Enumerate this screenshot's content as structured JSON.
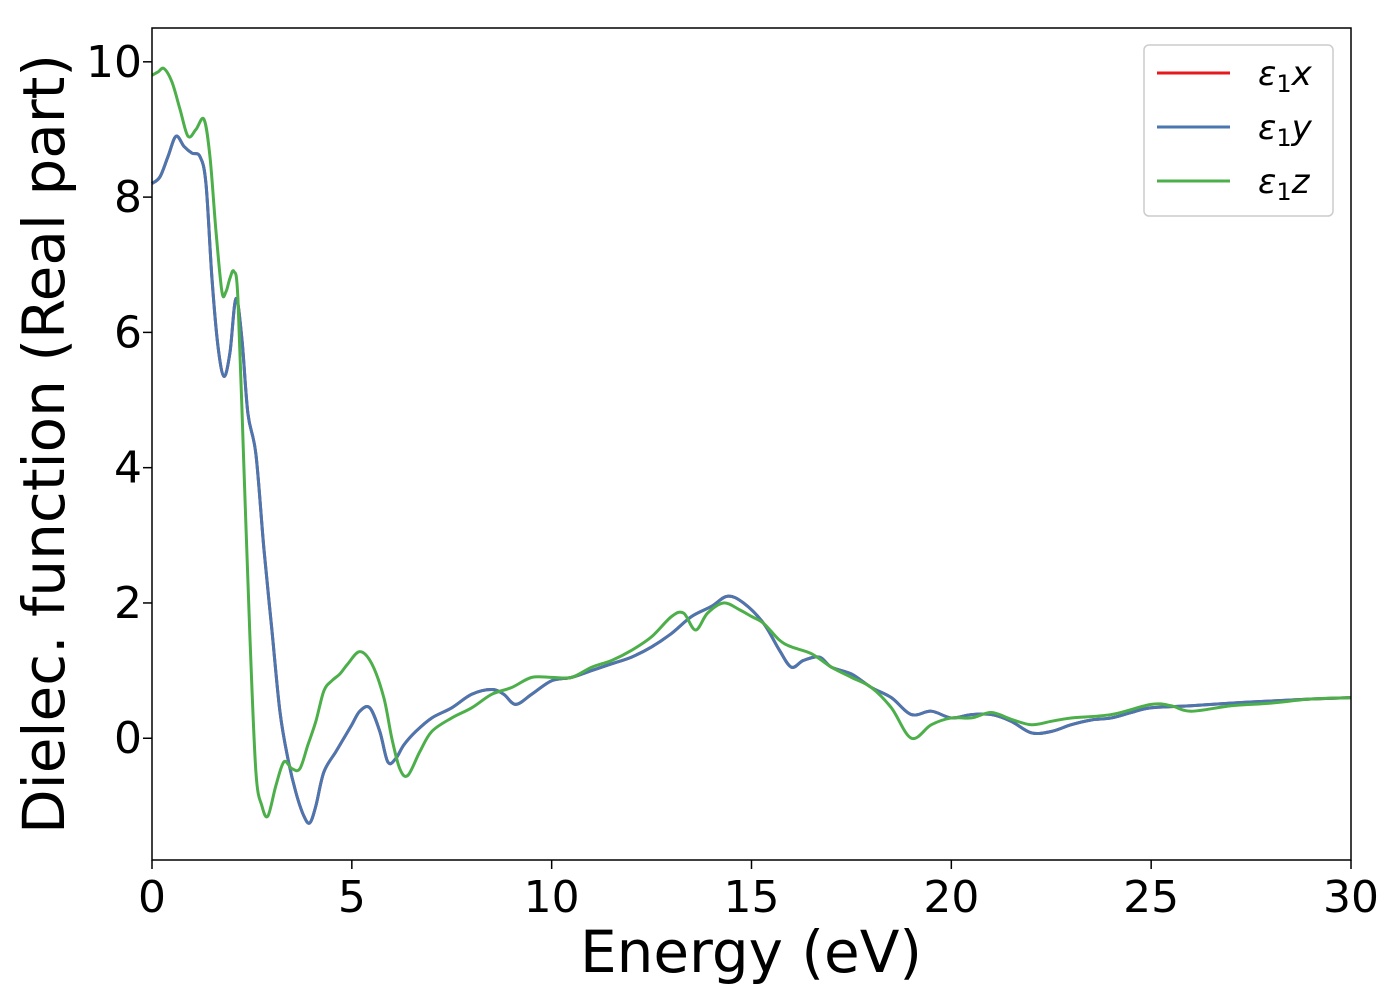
{
  "chart_data": {
    "type": "line",
    "xlabel": "Energy (eV)",
    "ylabel": "Dielec. function (Real part)",
    "xlim": [
      0,
      30
    ],
    "ylim": [
      -1.8,
      10.5
    ],
    "xticks": [
      0,
      5,
      10,
      15,
      20,
      25,
      30
    ],
    "yticks": [
      0,
      2,
      4,
      6,
      8,
      10
    ],
    "grid": false,
    "legend_position": "top-right",
    "series": [
      {
        "name": "ε₁x",
        "legend_base": "ε",
        "legend_sub": "1",
        "legend_var": "x",
        "color": "#e41a1c",
        "x": [
          0,
          0.2,
          0.4,
          0.6,
          0.8,
          1.0,
          1.2,
          1.35,
          1.5,
          1.65,
          1.8,
          1.95,
          2.1,
          2.25,
          2.4,
          2.6,
          2.8,
          3.0,
          3.2,
          3.4,
          3.6,
          3.8,
          3.95,
          4.1,
          4.3,
          4.6,
          4.8,
          5.0,
          5.2,
          5.45,
          5.7,
          5.9,
          6.1,
          6.3,
          6.6,
          7.0,
          7.5,
          8.0,
          8.5,
          8.8,
          9.1,
          9.5,
          10.0,
          10.5,
          11.0,
          11.5,
          12.0,
          12.5,
          13.0,
          13.5,
          14.0,
          14.4,
          14.8,
          15.3,
          15.7,
          16.0,
          16.3,
          16.7,
          17.0,
          17.5,
          18.0,
          18.5,
          19.0,
          19.5,
          20.0,
          20.5,
          21.0,
          21.5,
          22.0,
          22.5,
          23.0,
          23.5,
          24.0,
          24.5,
          25.0,
          26.0,
          27.0,
          28.0,
          29.0,
          30.0
        ],
        "values": [
          8.2,
          8.3,
          8.6,
          8.9,
          8.75,
          8.65,
          8.6,
          8.2,
          6.8,
          5.8,
          5.35,
          5.7,
          6.5,
          5.9,
          4.8,
          4.2,
          2.8,
          1.6,
          0.4,
          -0.3,
          -0.8,
          -1.15,
          -1.25,
          -1.0,
          -0.5,
          -0.2,
          0.0,
          0.2,
          0.4,
          0.45,
          0.1,
          -0.35,
          -0.3,
          -0.1,
          0.1,
          0.3,
          0.45,
          0.65,
          0.72,
          0.65,
          0.5,
          0.65,
          0.85,
          0.9,
          1.0,
          1.1,
          1.2,
          1.35,
          1.55,
          1.8,
          1.95,
          2.1,
          2.0,
          1.7,
          1.3,
          1.05,
          1.15,
          1.2,
          1.05,
          0.95,
          0.75,
          0.6,
          0.35,
          0.4,
          0.3,
          0.35,
          0.35,
          0.25,
          0.08,
          0.1,
          0.2,
          0.27,
          0.3,
          0.38,
          0.45,
          0.48,
          0.52,
          0.55,
          0.58,
          0.6
        ]
      },
      {
        "name": "ε₁y",
        "legend_base": "ε",
        "legend_sub": "1",
        "legend_var": "y",
        "color": "#4a77b0",
        "x": [
          0,
          0.2,
          0.4,
          0.6,
          0.8,
          1.0,
          1.2,
          1.35,
          1.5,
          1.65,
          1.8,
          1.95,
          2.1,
          2.25,
          2.4,
          2.6,
          2.8,
          3.0,
          3.2,
          3.4,
          3.6,
          3.8,
          3.95,
          4.1,
          4.3,
          4.6,
          4.8,
          5.0,
          5.2,
          5.45,
          5.7,
          5.9,
          6.1,
          6.3,
          6.6,
          7.0,
          7.5,
          8.0,
          8.5,
          8.8,
          9.1,
          9.5,
          10.0,
          10.5,
          11.0,
          11.5,
          12.0,
          12.5,
          13.0,
          13.5,
          14.0,
          14.4,
          14.8,
          15.3,
          15.7,
          16.0,
          16.3,
          16.7,
          17.0,
          17.5,
          18.0,
          18.5,
          19.0,
          19.5,
          20.0,
          20.5,
          21.0,
          21.5,
          22.0,
          22.5,
          23.0,
          23.5,
          24.0,
          24.5,
          25.0,
          26.0,
          27.0,
          28.0,
          29.0,
          30.0
        ],
        "values": [
          8.2,
          8.3,
          8.6,
          8.9,
          8.75,
          8.65,
          8.6,
          8.2,
          6.8,
          5.8,
          5.35,
          5.7,
          6.5,
          5.9,
          4.8,
          4.2,
          2.8,
          1.6,
          0.4,
          -0.3,
          -0.8,
          -1.15,
          -1.25,
          -1.0,
          -0.5,
          -0.2,
          0.0,
          0.2,
          0.4,
          0.45,
          0.1,
          -0.35,
          -0.3,
          -0.1,
          0.1,
          0.3,
          0.45,
          0.65,
          0.72,
          0.65,
          0.5,
          0.65,
          0.85,
          0.9,
          1.0,
          1.1,
          1.2,
          1.35,
          1.55,
          1.8,
          1.95,
          2.1,
          2.0,
          1.7,
          1.3,
          1.05,
          1.15,
          1.2,
          1.05,
          0.95,
          0.75,
          0.6,
          0.35,
          0.4,
          0.3,
          0.35,
          0.35,
          0.25,
          0.08,
          0.1,
          0.2,
          0.27,
          0.3,
          0.38,
          0.45,
          0.48,
          0.52,
          0.55,
          0.58,
          0.6
        ]
      },
      {
        "name": "ε₁z",
        "legend_base": "ε",
        "legend_sub": "1",
        "legend_var": "z",
        "color": "#4daf4a",
        "x": [
          0,
          0.15,
          0.3,
          0.5,
          0.7,
          0.9,
          1.1,
          1.3,
          1.45,
          1.6,
          1.75,
          1.85,
          1.95,
          2.05,
          2.15,
          2.3,
          2.45,
          2.6,
          2.75,
          2.9,
          3.1,
          3.3,
          3.5,
          3.7,
          3.9,
          4.1,
          4.3,
          4.5,
          4.7,
          4.9,
          5.2,
          5.5,
          5.8,
          6.0,
          6.2,
          6.4,
          6.7,
          7.0,
          7.5,
          8.0,
          8.5,
          9.0,
          9.5,
          10.0,
          10.5,
          11.0,
          11.5,
          12.0,
          12.5,
          13.0,
          13.3,
          13.6,
          13.9,
          14.3,
          14.7,
          15.0,
          15.3,
          15.7,
          16.0,
          16.5,
          17.0,
          17.5,
          18.0,
          18.5,
          19.0,
          19.5,
          20.0,
          20.5,
          21.0,
          21.5,
          22.0,
          22.5,
          23.0,
          24.0,
          25.0,
          25.5,
          26.0,
          27.0,
          28.0,
          29.0,
          30.0
        ],
        "values": [
          9.8,
          9.85,
          9.9,
          9.7,
          9.3,
          8.9,
          9.0,
          9.15,
          8.6,
          7.5,
          6.6,
          6.6,
          6.8,
          6.9,
          6.5,
          4.0,
          1.5,
          -0.5,
          -1.0,
          -1.15,
          -0.7,
          -0.35,
          -0.45,
          -0.45,
          -0.1,
          0.25,
          0.7,
          0.85,
          0.95,
          1.1,
          1.28,
          1.1,
          0.6,
          0.0,
          -0.45,
          -0.55,
          -0.2,
          0.1,
          0.3,
          0.45,
          0.65,
          0.75,
          0.9,
          0.9,
          0.9,
          1.05,
          1.15,
          1.3,
          1.5,
          1.8,
          1.85,
          1.6,
          1.85,
          2.0,
          1.9,
          1.8,
          1.7,
          1.45,
          1.35,
          1.25,
          1.05,
          0.9,
          0.75,
          0.45,
          0.0,
          0.2,
          0.3,
          0.3,
          0.38,
          0.28,
          0.2,
          0.25,
          0.3,
          0.35,
          0.5,
          0.48,
          0.4,
          0.48,
          0.52,
          0.58,
          0.6
        ]
      }
    ]
  }
}
